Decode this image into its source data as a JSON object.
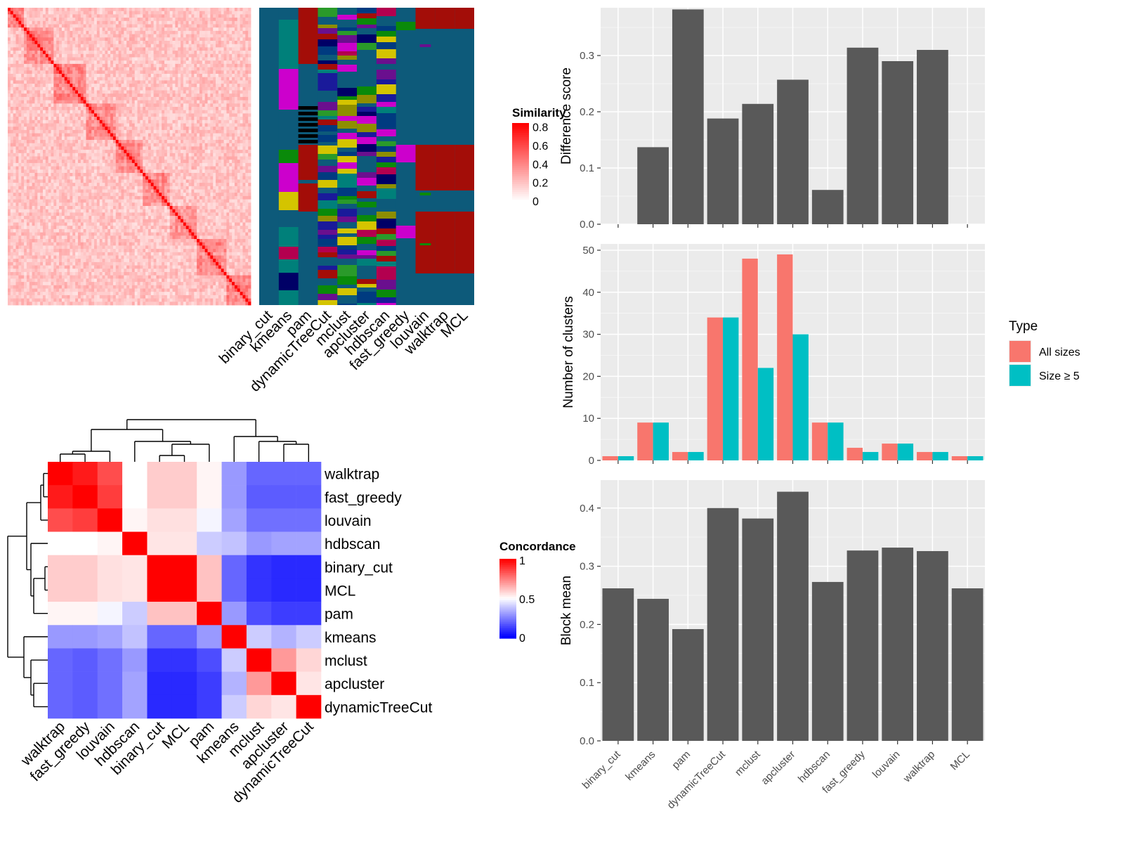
{
  "chart_data": [
    {
      "type": "heatmap",
      "legend_title": "Similarity",
      "legend_ticks": [
        "0",
        "0.2",
        "0.4",
        "0.6",
        "0.8"
      ],
      "color_low": "#ffffff",
      "color_high": "#ff0000",
      "block_structure": [
        0.07,
        0.12,
        0.13,
        0.12,
        0.11,
        0.12,
        0.11,
        0.12,
        0.1
      ],
      "annotation_columns": [
        "binary_cut",
        "kmeans",
        "pam",
        "dynamicTreeCut",
        "mclust",
        "apcluster",
        "hdbscan",
        "fast_greedy",
        "louvain",
        "walktrap",
        "MCL"
      ],
      "annotation_background": "#0d5a7a",
      "annotation_cluster_color": "#a30d08"
    },
    {
      "type": "heatmap",
      "legend_title": "Concordance",
      "legend_ticks": [
        "0",
        "0.5",
        "1"
      ],
      "color_low": "#0000ff",
      "color_mid": "#ffffff",
      "color_high": "#ff0000",
      "rows": [
        "walktrap",
        "fast_greedy",
        "louvain",
        "hdbscan",
        "binary_cut",
        "MCL",
        "pam",
        "kmeans",
        "mclust",
        "apcluster",
        "dynamicTreeCut"
      ],
      "columns": [
        "walktrap",
        "fast_greedy",
        "louvain",
        "hdbscan",
        "binary_cut",
        "MCL",
        "pam",
        "kmeans",
        "mclust",
        "apcluster",
        "dynamicTreeCut"
      ],
      "values": [
        [
          1.0,
          0.95,
          0.85,
          0.5,
          0.6,
          0.6,
          0.52,
          0.3,
          0.2,
          0.2,
          0.2
        ],
        [
          0.95,
          1.0,
          0.88,
          0.5,
          0.6,
          0.6,
          0.52,
          0.3,
          0.18,
          0.18,
          0.18
        ],
        [
          0.85,
          0.88,
          1.0,
          0.52,
          0.56,
          0.56,
          0.48,
          0.32,
          0.22,
          0.22,
          0.22
        ],
        [
          0.5,
          0.5,
          0.52,
          1.0,
          0.55,
          0.55,
          0.4,
          0.38,
          0.3,
          0.32,
          0.32
        ],
        [
          0.6,
          0.6,
          0.56,
          0.55,
          1.0,
          1.0,
          0.62,
          0.2,
          0.1,
          0.08,
          0.08
        ],
        [
          0.6,
          0.6,
          0.56,
          0.55,
          1.0,
          1.0,
          0.62,
          0.2,
          0.1,
          0.08,
          0.08
        ],
        [
          0.52,
          0.52,
          0.48,
          0.4,
          0.62,
          0.62,
          1.0,
          0.3,
          0.15,
          0.12,
          0.12
        ],
        [
          0.3,
          0.3,
          0.32,
          0.38,
          0.2,
          0.2,
          0.3,
          1.0,
          0.4,
          0.35,
          0.4
        ],
        [
          0.2,
          0.18,
          0.22,
          0.3,
          0.1,
          0.1,
          0.15,
          0.4,
          1.0,
          0.7,
          0.58
        ],
        [
          0.2,
          0.18,
          0.22,
          0.32,
          0.08,
          0.08,
          0.12,
          0.35,
          0.7,
          1.0,
          0.55
        ],
        [
          0.2,
          0.18,
          0.22,
          0.32,
          0.08,
          0.08,
          0.12,
          0.4,
          0.58,
          0.55,
          1.0
        ]
      ]
    },
    {
      "type": "bar",
      "ylabel": "Difference score",
      "categories": [
        "binary_cut",
        "kmeans",
        "pam",
        "dynamicTreeCut",
        "mclust",
        "apcluster",
        "hdbscan",
        "fast_greedy",
        "louvain",
        "walktrap",
        "MCL"
      ],
      "values": [
        0,
        0.137,
        0.382,
        0.188,
        0.214,
        0.257,
        0.061,
        0.314,
        0.29,
        0.31,
        0
      ],
      "ylim": [
        0,
        0.385
      ],
      "yticks": [
        "0.0",
        "0.1",
        "0.2",
        "0.3"
      ],
      "bar_color": "#595959",
      "panel_color": "#ebebeb",
      "grid": true
    },
    {
      "type": "bar",
      "ylabel": "Number of clusters",
      "categories": [
        "binary_cut",
        "kmeans",
        "pam",
        "dynamicTreeCut",
        "mclust",
        "apcluster",
        "hdbscan",
        "fast_greedy",
        "louvain",
        "walktrap",
        "MCL"
      ],
      "series": [
        {
          "name": "All sizes",
          "color": "#f8766d",
          "values": [
            1,
            9,
            2,
            34,
            48,
            49,
            9,
            3,
            4,
            2,
            1
          ]
        },
        {
          "name": "Size ≥ 5",
          "color": "#00bfc4",
          "values": [
            1,
            9,
            2,
            34,
            22,
            30,
            9,
            2,
            4,
            2,
            1
          ]
        }
      ],
      "ylim": [
        0,
        51.5
      ],
      "yticks": [
        "0",
        "10",
        "20",
        "30",
        "40",
        "50"
      ],
      "legend_title": "Type",
      "legend_position": "right",
      "panel_color": "#ebebeb",
      "grid": true
    },
    {
      "type": "bar",
      "ylabel": "Block mean",
      "categories": [
        "binary_cut",
        "kmeans",
        "pam",
        "dynamicTreeCut",
        "mclust",
        "apcluster",
        "hdbscan",
        "fast_greedy",
        "louvain",
        "walktrap",
        "MCL"
      ],
      "values": [
        0.262,
        0.244,
        0.192,
        0.4,
        0.382,
        0.428,
        0.273,
        0.327,
        0.332,
        0.326,
        0.262
      ],
      "ylim": [
        0,
        0.448
      ],
      "yticks": [
        "0.0",
        "0.1",
        "0.2",
        "0.3",
        "0.4"
      ],
      "bar_color": "#595959",
      "panel_color": "#ebebeb",
      "grid": true
    }
  ]
}
